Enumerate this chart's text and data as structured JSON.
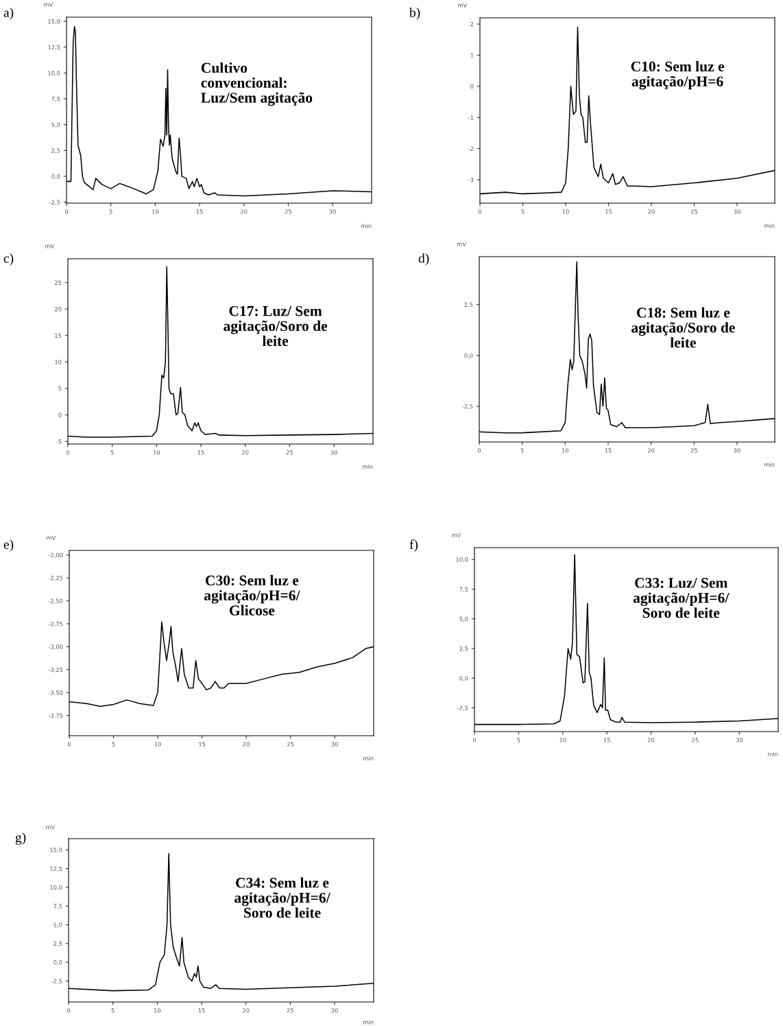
{
  "chart_data": [
    {
      "type": "line",
      "title": "a)",
      "xlabel": "min",
      "ylabel": "mV",
      "annotations": [
        "Cultivo\nconvencional:\nLuz/Sem agitação"
      ],
      "x": [
        0,
        0.5,
        0.6,
        0.75,
        0.9,
        1.0,
        1.15,
        1.3,
        1.6,
        1.8,
        2.0,
        3.0,
        3.3,
        4,
        5,
        6,
        7,
        9,
        9.8,
        10.3,
        10.6,
        10.9,
        11.1,
        11.2,
        11.3,
        11.4,
        11.5,
        11.6,
        11.7,
        11.9,
        12.3,
        12.5,
        12.7,
        12.9,
        13,
        13.5,
        13.8,
        14.2,
        14.4,
        14.7,
        15.0,
        15.2,
        15.5,
        16,
        16.7,
        17,
        20,
        25,
        30,
        34.4
      ],
      "series": [
        {
          "color": "#000000",
          "values": [
            -0.5,
            -0.5,
            5,
            13,
            14.5,
            14,
            8,
            3,
            2,
            0,
            -0.6,
            -1.3,
            -0.2,
            -0.8,
            -1.2,
            -0.7,
            -1.0,
            -1.7,
            -1.3,
            0.5,
            3.6,
            2.9,
            4,
            8.5,
            4,
            10.3,
            5,
            3.0,
            4,
            1.8,
            0.5,
            0.2,
            3.7,
            1.5,
            0,
            -0.2,
            -1.2,
            -0.5,
            -1.0,
            -0.2,
            -1.0,
            -0.8,
            -1.6,
            -1.8,
            -1.6,
            -1.8,
            -1.9,
            -1.7,
            -1.4,
            -1.5
          ]
        }
      ],
      "xlim": [
        0,
        34.4
      ],
      "ylim": [
        -2.6,
        15.4
      ],
      "xticks": [
        0,
        5,
        10,
        15,
        20,
        25,
        30
      ],
      "yticks": [
        {
          "value": -2.5,
          "label": "-2,5"
        },
        {
          "value": 0,
          "label": "0,0"
        },
        {
          "value": 2.5,
          "label": "2,5"
        },
        {
          "value": 5,
          "label": "5,0"
        },
        {
          "value": 7.5,
          "label": "7,5"
        },
        {
          "value": 10,
          "label": "10,0"
        },
        {
          "value": 12.5,
          "label": "12,5"
        },
        {
          "value": 15,
          "label": "15,0"
        }
      ]
    },
    {
      "type": "line",
      "title": "b)",
      "xlabel": "min",
      "ylabel": "mV",
      "annotations": [
        "C10: Sem luz e\nagitação/pH=6"
      ],
      "x": [
        0,
        3,
        5,
        8,
        9.5,
        10,
        10.3,
        10.6,
        10.9,
        11.2,
        11.4,
        11.6,
        11.8,
        12.0,
        12.3,
        12.5,
        12.7,
        12.9,
        13.3,
        13.8,
        14.1,
        14.4,
        15,
        15.5,
        15.8,
        16.3,
        16.7,
        17.2,
        18,
        20,
        25,
        30,
        34.4
      ],
      "series": [
        {
          "color": "#000000",
          "values": [
            -3.45,
            -3.4,
            -3.45,
            -3.42,
            -3.4,
            -3.1,
            -2.0,
            0.0,
            -0.9,
            -0.8,
            1.9,
            -0.3,
            -0.9,
            -1.0,
            -1.8,
            -1.8,
            -0.3,
            -1.2,
            -2.6,
            -2.9,
            -2.5,
            -2.95,
            -3.1,
            -2.8,
            -3.15,
            -3.1,
            -2.9,
            -3.2,
            -3.2,
            -3.22,
            -3.1,
            -2.95,
            -2.7
          ]
        }
      ],
      "xlim": [
        0,
        34.4
      ],
      "ylim": [
        -3.75,
        2.2
      ],
      "xticks": [
        0,
        5,
        10,
        15,
        20,
        25,
        30
      ],
      "yticks": [
        -3,
        -2,
        -1,
        0,
        1,
        2
      ]
    },
    {
      "type": "line",
      "title": "c)",
      "xlabel": "min",
      "ylabel": "mV",
      "annotations": [
        "C17: Luz/ Sem\nagitação/Soro de\nleite"
      ],
      "x": [
        0,
        2,
        5,
        9.5,
        10,
        10.3,
        10.6,
        10.8,
        11.0,
        11.15,
        11.3,
        11.4,
        11.6,
        11.9,
        12.2,
        12.4,
        12.7,
        12.9,
        13.2,
        13.5,
        14,
        14.3,
        14.5,
        14.7,
        15,
        15.5,
        16.7,
        17,
        20,
        25,
        30,
        34.4
      ],
      "series": [
        {
          "color": "#000000",
          "values": [
            -4,
            -4.2,
            -4.2,
            -4.0,
            -3,
            0,
            7.5,
            7,
            10,
            28,
            15,
            5,
            4,
            4,
            0,
            0.3,
            5.2,
            0.5,
            0,
            -2,
            -3,
            -1.5,
            -2.2,
            -1.5,
            -3,
            -3.7,
            -3.5,
            -3.8,
            -3.9,
            -3.8,
            -3.7,
            -3.5
          ]
        }
      ],
      "xlim": [
        0,
        34.4
      ],
      "ylim": [
        -5.5,
        29.5
      ],
      "xticks": [
        0,
        5,
        10,
        15,
        20,
        25,
        30
      ],
      "yticks": [
        -5,
        0,
        5,
        10,
        15,
        20,
        25
      ]
    },
    {
      "type": "line",
      "title": "d)",
      "xlabel": "min",
      "ylabel": "mV",
      "annotations": [
        "C18: Sem luz e\nagitação/Soro de\nleite"
      ],
      "x": [
        0,
        3,
        5,
        9.5,
        10,
        10.3,
        10.6,
        10.8,
        11.0,
        11.2,
        11.35,
        11.5,
        11.7,
        12.0,
        12.3,
        12.5,
        12.7,
        12.9,
        13.1,
        13.3,
        13.7,
        14,
        14.2,
        14.4,
        14.6,
        14.8,
        15,
        15.3,
        16,
        16.6,
        17,
        20,
        25,
        26.3,
        26.6,
        26.9,
        28,
        30,
        34.4
      ],
      "series": [
        {
          "color": "#000000",
          "values": [
            -3.75,
            -3.8,
            -3.8,
            -3.7,
            -3.3,
            -1.5,
            -0.2,
            -0.7,
            -0.3,
            2.5,
            4.6,
            2,
            0.0,
            -0.3,
            -0.9,
            -1.6,
            0.8,
            1.05,
            0.7,
            -1.5,
            -2.8,
            -2.9,
            -1.4,
            -2.5,
            -1.1,
            -2.6,
            -2.7,
            -3.4,
            -3.5,
            -3.3,
            -3.55,
            -3.55,
            -3.45,
            -3.3,
            -2.4,
            -3.35,
            -3.3,
            -3.25,
            -3.1
          ]
        }
      ],
      "xlim": [
        0,
        34.4
      ],
      "ylim": [
        -4.25,
        4.85
      ],
      "xticks": [
        0,
        5,
        10,
        15,
        20,
        25,
        30
      ],
      "yticks": [
        {
          "value": -2.5,
          "label": "-2,5"
        },
        {
          "value": 0,
          "label": "0,0"
        },
        {
          "value": 2.5,
          "label": "2,5"
        }
      ]
    },
    {
      "type": "line",
      "title": "e)",
      "xlabel": "min",
      "ylabel": "mV",
      "annotations": [
        "C30: Sem luz e\nagitação/pH=6/\nGlicose"
      ],
      "x": [
        0,
        2,
        3.5,
        5,
        6.5,
        8,
        9.5,
        10,
        10.3,
        10.45,
        10.7,
        11.0,
        11.3,
        11.5,
        11.7,
        12.0,
        12.3,
        12.7,
        13,
        13.5,
        14,
        14.3,
        14.6,
        15,
        15.5,
        16,
        16.5,
        17,
        17.5,
        18,
        20,
        22,
        24,
        26,
        28,
        30,
        32,
        33.5,
        34.4
      ],
      "series": [
        {
          "color": "#000000",
          "values": [
            -3.6,
            -3.62,
            -3.65,
            -3.63,
            -3.58,
            -3.62,
            -3.64,
            -3.5,
            -3.0,
            -2.73,
            -2.95,
            -3.15,
            -2.95,
            -2.78,
            -3.05,
            -3.2,
            -3.38,
            -3.02,
            -3.3,
            -3.45,
            -3.45,
            -3.15,
            -3.35,
            -3.4,
            -3.47,
            -3.45,
            -3.38,
            -3.45,
            -3.45,
            -3.4,
            -3.4,
            -3.35,
            -3.3,
            -3.28,
            -3.22,
            -3.18,
            -3.12,
            -3.02,
            -3.0
          ]
        }
      ],
      "xlim": [
        0,
        34.4
      ],
      "ylim": [
        -3.97,
        -1.95
      ],
      "xticks": [
        0,
        5,
        10,
        15,
        20,
        25,
        30
      ],
      "yticks": [
        {
          "value": -3.75,
          "label": "-3,75"
        },
        {
          "value": -3.5,
          "label": "-3,50"
        },
        {
          "value": -3.25,
          "label": "-3,25"
        },
        {
          "value": -3.0,
          "label": "-3,00"
        },
        {
          "value": -2.75,
          "label": "-2,75"
        },
        {
          "value": -2.5,
          "label": "-2,50"
        },
        {
          "value": -2.25,
          "label": "-2,25"
        },
        {
          "value": -2.0,
          "label": "-2,00"
        }
      ]
    },
    {
      "type": "line",
      "title": "f)",
      "xlabel": "min",
      "ylabel": "mV",
      "annotations": [
        "C33: Luz/ Sem\nagitação/pH=6/\nSoro de leite"
      ],
      "x": [
        0,
        5,
        9,
        9.7,
        10.2,
        10.6,
        10.9,
        11.1,
        11.35,
        11.6,
        11.9,
        12.3,
        12.5,
        12.8,
        13.0,
        13.2,
        13.5,
        13.9,
        14.3,
        14.5,
        14.7,
        14.85,
        15.1,
        15.4,
        16,
        16.5,
        16.7,
        17,
        20,
        25,
        30,
        34.4
      ],
      "series": [
        {
          "color": "#000000",
          "values": [
            -3.9,
            -3.9,
            -3.85,
            -3.6,
            -1.5,
            2.5,
            1.6,
            3,
            10.4,
            2,
            1.8,
            -0.4,
            -0.3,
            6.3,
            0.5,
            0,
            -2.3,
            -2.9,
            -2.2,
            -2.5,
            1.7,
            -2.7,
            -2.7,
            -3.5,
            -3.7,
            -3.7,
            -3.3,
            -3.7,
            -3.75,
            -3.7,
            -3.6,
            -3.4
          ]
        }
      ],
      "xlim": [
        0,
        34.4
      ],
      "ylim": [
        -4.5,
        11.0
      ],
      "xticks": [
        0,
        5,
        10,
        15,
        20,
        25,
        30
      ],
      "yticks": [
        {
          "value": -2.5,
          "label": "-2,5"
        },
        {
          "value": 0,
          "label": "0,0"
        },
        {
          "value": 2.5,
          "label": "2,5"
        },
        {
          "value": 5,
          "label": "5,0"
        },
        {
          "value": 7.5,
          "label": "7,5"
        },
        {
          "value": 10,
          "label": "10,0"
        }
      ]
    },
    {
      "type": "line",
      "title": "g)",
      "xlabel": "min",
      "ylabel": "mV",
      "annotations": [
        "C34: Sem luz e\nagitação/pH=6/\nSoro de leite"
      ],
      "x": [
        0,
        5,
        9,
        9.8,
        10.3,
        10.8,
        11.1,
        11.3,
        11.5,
        11.8,
        12.2,
        12.5,
        12.8,
        13.0,
        13.5,
        13.9,
        14.2,
        14.4,
        14.6,
        14.8,
        15.2,
        16,
        16.6,
        17,
        20,
        25,
        30,
        34.4
      ],
      "series": [
        {
          "color": "#000000",
          "values": [
            -3.5,
            -3.8,
            -3.7,
            -3,
            0,
            1,
            5,
            14.5,
            5,
            2,
            0.5,
            -0.5,
            3.3,
            0,
            -2,
            -2.5,
            -1.5,
            -2,
            -0.5,
            -2.5,
            -3.3,
            -3.5,
            -3.0,
            -3.5,
            -3.6,
            -3.4,
            -3.2,
            -2.8
          ]
        }
      ],
      "xlim": [
        0,
        34.4
      ],
      "ylim": [
        -5.3,
        16.5
      ],
      "xticks": [
        0,
        5,
        10,
        15,
        20,
        25,
        30
      ],
      "yticks": [
        {
          "value": -2.5,
          "label": "-2,5"
        },
        {
          "value": 0,
          "label": "0,0"
        },
        {
          "value": 2.5,
          "label": "2,5"
        },
        {
          "value": 5,
          "label": "5,0"
        },
        {
          "value": 7.5,
          "label": "7,5"
        },
        {
          "value": 10,
          "label": "10,0"
        },
        {
          "value": 12.5,
          "label": "12,5"
        },
        {
          "value": 15,
          "label": "15,0"
        }
      ]
    }
  ]
}
